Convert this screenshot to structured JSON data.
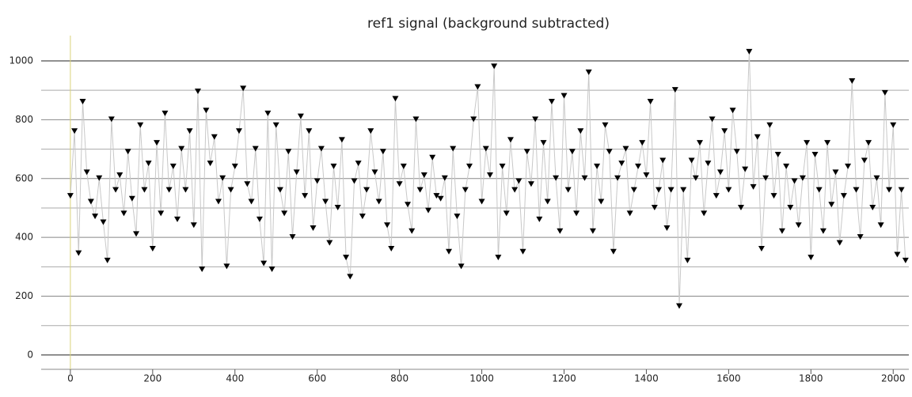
{
  "chart_data": {
    "type": "line",
    "title": "ref1 signal (background subtracted)",
    "marker": "triangle-down",
    "line_color": "#c8c8c8",
    "marker_color": "#000000",
    "zero_line_color": "#d8d27a",
    "xlim": [
      -71,
      2038
    ],
    "ylim": [
      -97,
      1086
    ],
    "xticks": [
      0,
      200,
      400,
      600,
      800,
      1000,
      1200,
      1400,
      1600,
      1800,
      2000
    ],
    "yticks": [
      0,
      200,
      400,
      600,
      800,
      1000
    ],
    "yminor": [
      100,
      300,
      500,
      700,
      900
    ],
    "grid": true,
    "series": [
      {
        "x": [
          0,
          10,
          20,
          30,
          40,
          50,
          60,
          70,
          80,
          90,
          100,
          110,
          120,
          130,
          140,
          150,
          160,
          170,
          180,
          190,
          200,
          210,
          220,
          230,
          240,
          250,
          260,
          270,
          280,
          290,
          300,
          310,
          320,
          330,
          340,
          350,
          360,
          370,
          380,
          390,
          400,
          410,
          420,
          430,
          440,
          450,
          460,
          470,
          480,
          490,
          500,
          510,
          520,
          530,
          540,
          550,
          560,
          570,
          580,
          590,
          600,
          610,
          620,
          630,
          640,
          650,
          660,
          670,
          680,
          690,
          700,
          710,
          720,
          730,
          740,
          750,
          760,
          770,
          780,
          790,
          800,
          810,
          820,
          830,
          840,
          850,
          860,
          870,
          880,
          890,
          900,
          910,
          920,
          930,
          940,
          950,
          960,
          970,
          980,
          990,
          1000,
          1010,
          1020,
          1030,
          1040,
          1050,
          1060,
          1070,
          1080,
          1090,
          1100,
          1110,
          1120,
          1130,
          1140,
          1150,
          1160,
          1170,
          1180,
          1190,
          1200,
          1210,
          1220,
          1230,
          1240,
          1250,
          1260,
          1270,
          1280,
          1290,
          1300,
          1310,
          1320,
          1330,
          1340,
          1350,
          1360,
          1370,
          1380,
          1390,
          1400,
          1410,
          1420,
          1430,
          1440,
          1450,
          1460,
          1470,
          1480,
          1490,
          1500,
          1510,
          1520,
          1530,
          1540,
          1550,
          1560,
          1570,
          1580,
          1590,
          1600,
          1610,
          1620,
          1630,
          1640,
          1650,
          1660,
          1670,
          1680,
          1690,
          1700,
          1710,
          1720,
          1730,
          1740,
          1750,
          1760,
          1770,
          1780,
          1790,
          1800,
          1810,
          1820,
          1830,
          1840,
          1850,
          1860,
          1870,
          1880,
          1890,
          1900,
          1910,
          1920,
          1930,
          1940,
          1950,
          1960,
          1970,
          1980,
          1990,
          2000,
          2010,
          2020,
          2030
        ],
        "values": [
          540,
          760,
          345,
          860,
          620,
          520,
          470,
          600,
          450,
          320,
          800,
          560,
          610,
          480,
          690,
          530,
          410,
          780,
          560,
          650,
          360,
          720,
          480,
          820,
          560,
          640,
          460,
          700,
          560,
          760,
          440,
          895,
          290,
          830,
          650,
          740,
          520,
          600,
          300,
          560,
          640,
          760,
          905,
          580,
          520,
          700,
          460,
          310,
          820,
          290,
          780,
          560,
          480,
          690,
          400,
          620,
          810,
          540,
          760,
          430,
          590,
          700,
          520,
          380,
          640,
          500,
          730,
          330,
          265,
          590,
          650,
          470,
          560,
          760,
          620,
          520,
          690,
          440,
          360,
          870,
          580,
          640,
          510,
          420,
          800,
          560,
          610,
          490,
          670,
          540,
          530,
          600,
          350,
          700,
          470,
          300,
          560,
          640,
          800,
          910,
          520,
          700,
          610,
          980,
          330,
          640,
          480,
          730,
          560,
          590,
          350,
          690,
          580,
          800,
          460,
          720,
          520,
          860,
          600,
          420,
          880,
          560,
          690,
          480,
          760,
          600,
          960,
          420,
          640,
          520,
          780,
          690,
          350,
          600,
          650,
          700,
          480,
          560,
          640,
          720,
          610,
          860,
          500,
          560,
          660,
          430,
          560,
          900,
          165,
          560,
          320,
          660,
          600,
          720,
          480,
          650,
          800,
          540,
          620,
          760,
          560,
          830,
          690,
          500,
          630,
          1030,
          570,
          740,
          360,
          600,
          780,
          540,
          680,
          420,
          640,
          500,
          590,
          440,
          600,
          720,
          330,
          680,
          560,
          420,
          720,
          510,
          620,
          380,
          540,
          640,
          930,
          560,
          400,
          660,
          720,
          500,
          600,
          440,
          890,
          560,
          780,
          340,
          560,
          320
        ]
      }
    ]
  }
}
